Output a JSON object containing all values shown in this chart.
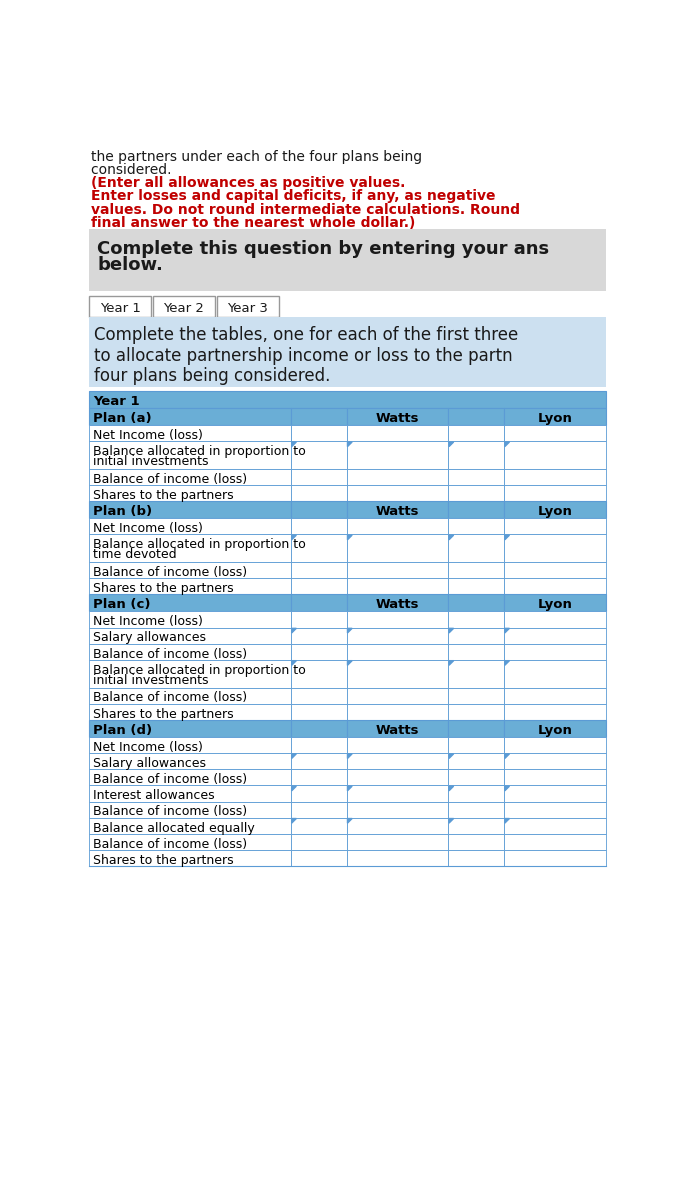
{
  "intro_line1": "the partners under each of the four plans being",
  "intro_line2": "considered. ",
  "intro_bold": "(Enter all allowances as positive values.\nEnter losses and capital deficits, if any, as negative\nvalues. Do not round intermediate calculations. Round\nfinal answer to the nearest whole dollar.)",
  "gray_box_line1": "Complete this question by entering your ans",
  "gray_box_line2": "below.",
  "tab_labels": [
    "Year 1",
    "Year 2",
    "Year 3"
  ],
  "instr_line1": "Complete the tables, one for each of the first three",
  "instr_line2": "to allocate partnership income or loss to the partn",
  "instr_line3": "four plans being considered.",
  "table_year_label": "Year 1",
  "plan_a_label": "Plan (a)",
  "plan_b_label": "Plan (b)",
  "plan_c_label": "Plan (c)",
  "plan_d_label": "Plan (d)",
  "watts_label": "Watts",
  "lyon_label": "Lyon",
  "plan_a_rows": [
    {
      "text": "Net Income (loss)",
      "double": false,
      "has_tab": false
    },
    {
      "text": "Balance allocated in proportion to\ninitial investments",
      "double": true,
      "has_tab": true
    },
    {
      "text": "Balance of income (loss)",
      "double": false,
      "has_tab": false
    },
    {
      "text": "Shares to the partners",
      "double": false,
      "has_tab": false
    }
  ],
  "plan_b_rows": [
    {
      "text": "Net Income (loss)",
      "double": false,
      "has_tab": false
    },
    {
      "text": "Balance allocated in proportion to\ntime devoted",
      "double": true,
      "has_tab": true
    },
    {
      "text": "Balance of income (loss)",
      "double": false,
      "has_tab": false
    },
    {
      "text": "Shares to the partners",
      "double": false,
      "has_tab": false
    }
  ],
  "plan_c_rows": [
    {
      "text": "Net Income (loss)",
      "double": false,
      "has_tab": false
    },
    {
      "text": "Salary allowances",
      "double": false,
      "has_tab": true
    },
    {
      "text": "Balance of income (loss)",
      "double": false,
      "has_tab": false
    },
    {
      "text": "Balance allocated in proportion to\ninitial investments",
      "double": true,
      "has_tab": true
    },
    {
      "text": "Balance of income (loss)",
      "double": false,
      "has_tab": false
    },
    {
      "text": "Shares to the partners",
      "double": false,
      "has_tab": false
    }
  ],
  "plan_d_rows": [
    {
      "text": "Net Income (loss)",
      "double": false,
      "has_tab": false
    },
    {
      "text": "Salary allowances",
      "double": false,
      "has_tab": true
    },
    {
      "text": "Balance of income (loss)",
      "double": false,
      "has_tab": false
    },
    {
      "text": "Interest allowances",
      "double": false,
      "has_tab": true
    },
    {
      "text": "Balance of income (loss)",
      "double": false,
      "has_tab": false
    },
    {
      "text": "Balance allocated equally",
      "double": false,
      "has_tab": true
    },
    {
      "text": "Balance of income (loss)",
      "double": false,
      "has_tab": false
    },
    {
      "text": "Shares to the partners",
      "double": false,
      "has_tab": false
    }
  ],
  "bg_white": "#ffffff",
  "bg_gray": "#d8d8d8",
  "bg_blue_light": "#cce0f0",
  "bg_blue_header": "#6aaed6",
  "text_black": "#1a1a1a",
  "text_red": "#c00000",
  "border_blue": "#5b9bd5",
  "border_gray": "#999999",
  "border_dark": "#444444"
}
